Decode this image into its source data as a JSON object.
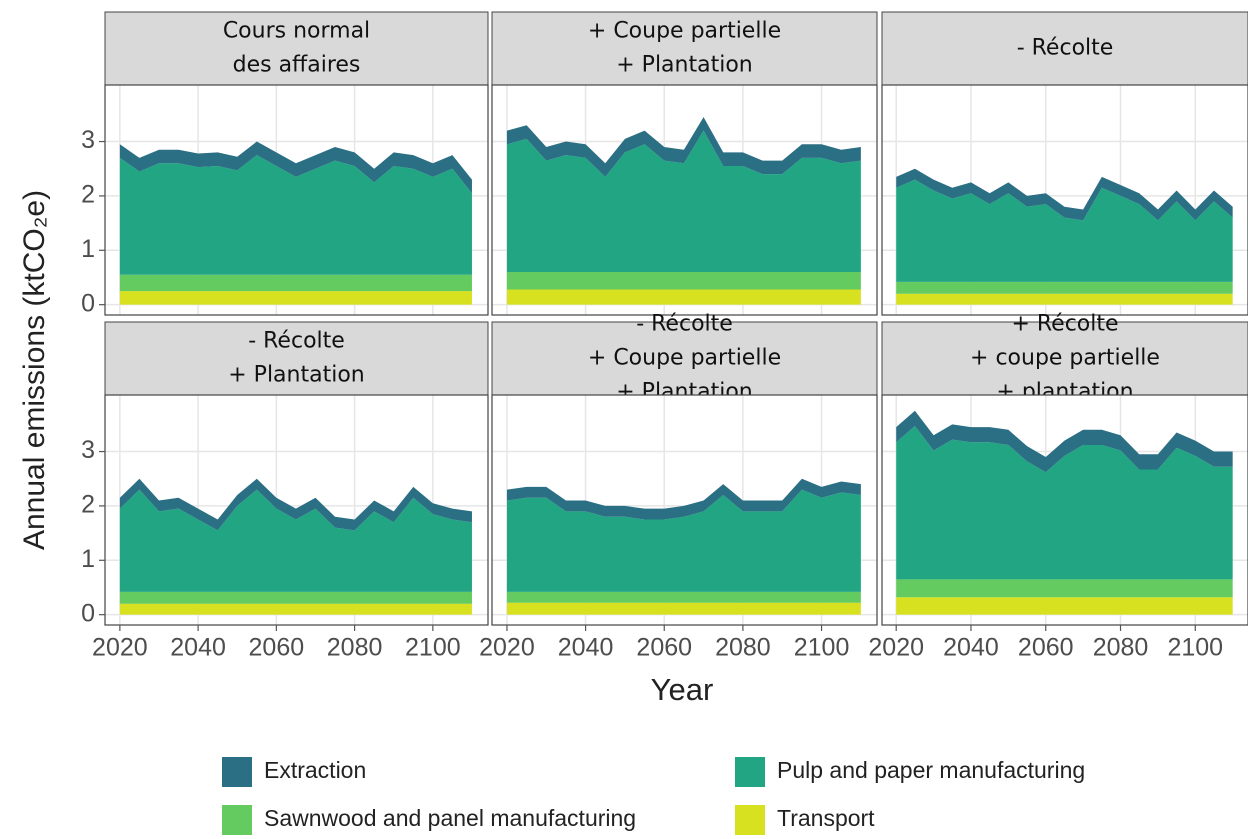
{
  "x_label": "Year",
  "y_label": "Annual emissions (ktCO₂e)",
  "chart_data": [
    {
      "type": "area",
      "stacked": true,
      "title": [
        "Cours normal",
        "des affaires"
      ],
      "x": [
        2020,
        2025,
        2030,
        2035,
        2040,
        2045,
        2050,
        2055,
        2060,
        2065,
        2070,
        2075,
        2080,
        2085,
        2090,
        2095,
        2100,
        2105,
        2110
      ],
      "series": [
        {
          "name": "Extraction",
          "color": "#2b6f84",
          "values": [
            0.25,
            0.25,
            0.25,
            0.25,
            0.25,
            0.25,
            0.25,
            0.25,
            0.25,
            0.25,
            0.25,
            0.25,
            0.25,
            0.25,
            0.25,
            0.25,
            0.25,
            0.25,
            0.25
          ]
        },
        {
          "name": "Pulp and paper manufacturing",
          "color": "#21a583",
          "values": [
            2.15,
            1.9,
            2.05,
            2.05,
            1.98,
            2.0,
            1.92,
            2.2,
            2.0,
            1.8,
            1.95,
            2.1,
            2.0,
            1.7,
            2.0,
            1.95,
            1.8,
            1.95,
            1.5
          ]
        },
        {
          "name": "Sawnwood and panel manufacturing",
          "color": "#63cb5f",
          "values": [
            0.3,
            0.3,
            0.3,
            0.3,
            0.3,
            0.3,
            0.3,
            0.3,
            0.3,
            0.3,
            0.3,
            0.3,
            0.3,
            0.3,
            0.3,
            0.3,
            0.3,
            0.3,
            0.3
          ]
        },
        {
          "name": "Transport",
          "color": "#d8e11f",
          "values": [
            0.25,
            0.25,
            0.25,
            0.25,
            0.25,
            0.25,
            0.25,
            0.25,
            0.25,
            0.25,
            0.25,
            0.25,
            0.25,
            0.25,
            0.25,
            0.25,
            0.25,
            0.25,
            0.25
          ]
        }
      ],
      "xlim": [
        2016.2,
        2114.1
      ],
      "xticks": [
        2020,
        2040,
        2060,
        2080,
        2100
      ],
      "ylim": [
        -0.19,
        4.04
      ],
      "yticks": [
        0,
        1,
        2,
        3
      ],
      "grid": true
    },
    {
      "type": "area",
      "stacked": true,
      "title": [
        "+ Coupe partielle",
        "+ Plantation"
      ],
      "x": [
        2020,
        2025,
        2030,
        2035,
        2040,
        2045,
        2050,
        2055,
        2060,
        2065,
        2070,
        2075,
        2080,
        2085,
        2090,
        2095,
        2100,
        2105,
        2110
      ],
      "series": [
        {
          "name": "Extraction",
          "color": "#2b6f84",
          "values": [
            0.25,
            0.25,
            0.25,
            0.25,
            0.25,
            0.25,
            0.25,
            0.25,
            0.25,
            0.25,
            0.25,
            0.25,
            0.25,
            0.25,
            0.25,
            0.25,
            0.25,
            0.25,
            0.25
          ]
        },
        {
          "name": "Pulp and paper manufacturing",
          "color": "#21a583",
          "values": [
            2.35,
            2.45,
            2.05,
            2.15,
            2.1,
            1.75,
            2.2,
            2.35,
            2.05,
            2.0,
            2.6,
            1.95,
            1.95,
            1.8,
            1.8,
            2.1,
            2.1,
            2.0,
            2.05
          ]
        },
        {
          "name": "Sawnwood and panel manufacturing",
          "color": "#63cb5f",
          "values": [
            0.32,
            0.32,
            0.32,
            0.32,
            0.32,
            0.32,
            0.32,
            0.32,
            0.32,
            0.32,
            0.32,
            0.32,
            0.32,
            0.32,
            0.32,
            0.32,
            0.32,
            0.32,
            0.32
          ]
        },
        {
          "name": "Transport",
          "color": "#d8e11f",
          "values": [
            0.28,
            0.28,
            0.28,
            0.28,
            0.28,
            0.28,
            0.28,
            0.28,
            0.28,
            0.28,
            0.28,
            0.28,
            0.28,
            0.28,
            0.28,
            0.28,
            0.28,
            0.28,
            0.28
          ]
        }
      ],
      "xlim": [
        2016.2,
        2114.1
      ],
      "xticks": [
        2020,
        2040,
        2060,
        2080,
        2100
      ],
      "ylim": [
        -0.19,
        4.04
      ],
      "yticks": [
        0,
        1,
        2,
        3
      ],
      "grid": true
    },
    {
      "type": "area",
      "stacked": true,
      "title": [
        "- Récolte"
      ],
      "x": [
        2020,
        2025,
        2030,
        2035,
        2040,
        2045,
        2050,
        2055,
        2060,
        2065,
        2070,
        2075,
        2080,
        2085,
        2090,
        2095,
        2100,
        2105,
        2110
      ],
      "series": [
        {
          "name": "Extraction",
          "color": "#2b6f84",
          "values": [
            0.2,
            0.2,
            0.2,
            0.2,
            0.2,
            0.2,
            0.2,
            0.2,
            0.2,
            0.2,
            0.2,
            0.2,
            0.2,
            0.2,
            0.2,
            0.2,
            0.2,
            0.2,
            0.2
          ]
        },
        {
          "name": "Pulp and paper manufacturing",
          "color": "#21a583",
          "values": [
            1.73,
            1.88,
            1.68,
            1.53,
            1.63,
            1.43,
            1.63,
            1.38,
            1.43,
            1.18,
            1.13,
            1.73,
            1.58,
            1.43,
            1.13,
            1.48,
            1.13,
            1.48,
            1.18
          ]
        },
        {
          "name": "Sawnwood and panel manufacturing",
          "color": "#63cb5f",
          "values": [
            0.22,
            0.22,
            0.22,
            0.22,
            0.22,
            0.22,
            0.22,
            0.22,
            0.22,
            0.22,
            0.22,
            0.22,
            0.22,
            0.22,
            0.22,
            0.22,
            0.22,
            0.22,
            0.22
          ]
        },
        {
          "name": "Transport",
          "color": "#d8e11f",
          "values": [
            0.2,
            0.2,
            0.2,
            0.2,
            0.2,
            0.2,
            0.2,
            0.2,
            0.2,
            0.2,
            0.2,
            0.2,
            0.2,
            0.2,
            0.2,
            0.2,
            0.2,
            0.2,
            0.2
          ]
        }
      ],
      "xlim": [
        2016.2,
        2114.1
      ],
      "xticks": [
        2020,
        2040,
        2060,
        2080,
        2100
      ],
      "ylim": [
        -0.19,
        4.04
      ],
      "yticks": [
        0,
        1,
        2,
        3
      ],
      "grid": true
    },
    {
      "type": "area",
      "stacked": true,
      "title": [
        "-   Récolte",
        "+ Plantation"
      ],
      "x": [
        2020,
        2025,
        2030,
        2035,
        2040,
        2045,
        2050,
        2055,
        2060,
        2065,
        2070,
        2075,
        2080,
        2085,
        2090,
        2095,
        2100,
        2105,
        2110
      ],
      "series": [
        {
          "name": "Extraction",
          "color": "#2b6f84",
          "values": [
            0.2,
            0.2,
            0.2,
            0.2,
            0.2,
            0.2,
            0.2,
            0.2,
            0.2,
            0.2,
            0.2,
            0.2,
            0.2,
            0.2,
            0.2,
            0.2,
            0.2,
            0.2,
            0.2
          ]
        },
        {
          "name": "Pulp and paper manufacturing",
          "color": "#21a583",
          "values": [
            1.53,
            1.88,
            1.48,
            1.53,
            1.33,
            1.13,
            1.58,
            1.88,
            1.53,
            1.33,
            1.53,
            1.18,
            1.13,
            1.48,
            1.28,
            1.73,
            1.43,
            1.33,
            1.28
          ]
        },
        {
          "name": "Sawnwood and panel manufacturing",
          "color": "#63cb5f",
          "values": [
            0.22,
            0.22,
            0.22,
            0.22,
            0.22,
            0.22,
            0.22,
            0.22,
            0.22,
            0.22,
            0.22,
            0.22,
            0.22,
            0.22,
            0.22,
            0.22,
            0.22,
            0.22,
            0.22
          ]
        },
        {
          "name": "Transport",
          "color": "#d8e11f",
          "values": [
            0.2,
            0.2,
            0.2,
            0.2,
            0.2,
            0.2,
            0.2,
            0.2,
            0.2,
            0.2,
            0.2,
            0.2,
            0.2,
            0.2,
            0.2,
            0.2,
            0.2,
            0.2,
            0.2
          ]
        }
      ],
      "xlim": [
        2016.2,
        2114.1
      ],
      "xticks": [
        2020,
        2040,
        2060,
        2080,
        2100
      ],
      "ylim": [
        -0.19,
        4.04
      ],
      "yticks": [
        0,
        1,
        2,
        3
      ],
      "grid": true
    },
    {
      "type": "area",
      "stacked": true,
      "title": [
        "- Récolte",
        "+ Coupe partielle",
        "+ Plantation"
      ],
      "x": [
        2020,
        2025,
        2030,
        2035,
        2040,
        2045,
        2050,
        2055,
        2060,
        2065,
        2070,
        2075,
        2080,
        2085,
        2090,
        2095,
        2100,
        2105,
        2110
      ],
      "series": [
        {
          "name": "Extraction",
          "color": "#2b6f84",
          "values": [
            0.2,
            0.2,
            0.2,
            0.2,
            0.2,
            0.2,
            0.2,
            0.2,
            0.2,
            0.2,
            0.2,
            0.2,
            0.2,
            0.2,
            0.2,
            0.2,
            0.2,
            0.2,
            0.2
          ]
        },
        {
          "name": "Pulp and paper manufacturing",
          "color": "#21a583",
          "values": [
            1.68,
            1.73,
            1.73,
            1.48,
            1.48,
            1.38,
            1.38,
            1.33,
            1.33,
            1.38,
            1.48,
            1.78,
            1.48,
            1.48,
            1.48,
            1.88,
            1.73,
            1.83,
            1.78
          ]
        },
        {
          "name": "Sawnwood and panel manufacturing",
          "color": "#63cb5f",
          "values": [
            0.2,
            0.2,
            0.2,
            0.2,
            0.2,
            0.2,
            0.2,
            0.2,
            0.2,
            0.2,
            0.2,
            0.2,
            0.2,
            0.2,
            0.2,
            0.2,
            0.2,
            0.2,
            0.2
          ]
        },
        {
          "name": "Transport",
          "color": "#d8e11f",
          "values": [
            0.22,
            0.22,
            0.22,
            0.22,
            0.22,
            0.22,
            0.22,
            0.22,
            0.22,
            0.22,
            0.22,
            0.22,
            0.22,
            0.22,
            0.22,
            0.22,
            0.22,
            0.22,
            0.22
          ]
        }
      ],
      "xlim": [
        2016.2,
        2114.1
      ],
      "xticks": [
        2020,
        2040,
        2060,
        2080,
        2100
      ],
      "ylim": [
        -0.19,
        4.04
      ],
      "yticks": [
        0,
        1,
        2,
        3
      ],
      "grid": true
    },
    {
      "type": "area",
      "stacked": true,
      "title": [
        "+ Récolte",
        "+ coupe partielle",
        "+ plantation"
      ],
      "x": [
        2020,
        2025,
        2030,
        2035,
        2040,
        2045,
        2050,
        2055,
        2060,
        2065,
        2070,
        2075,
        2080,
        2085,
        2090,
        2095,
        2100,
        2105,
        2110
      ],
      "series": [
        {
          "name": "Extraction",
          "color": "#2b6f84",
          "values": [
            0.28,
            0.28,
            0.28,
            0.28,
            0.28,
            0.28,
            0.28,
            0.28,
            0.28,
            0.28,
            0.28,
            0.28,
            0.28,
            0.28,
            0.28,
            0.28,
            0.28,
            0.28,
            0.28
          ]
        },
        {
          "name": "Pulp and paper manufacturing",
          "color": "#21a583",
          "values": [
            2.52,
            2.82,
            2.37,
            2.57,
            2.52,
            2.52,
            2.47,
            2.17,
            1.97,
            2.27,
            2.47,
            2.47,
            2.37,
            2.02,
            2.02,
            2.42,
            2.27,
            2.07,
            2.07
          ]
        },
        {
          "name": "Sawnwood and panel manufacturing",
          "color": "#63cb5f",
          "values": [
            0.33,
            0.33,
            0.33,
            0.33,
            0.33,
            0.33,
            0.33,
            0.33,
            0.33,
            0.33,
            0.33,
            0.33,
            0.33,
            0.33,
            0.33,
            0.33,
            0.33,
            0.33,
            0.33
          ]
        },
        {
          "name": "Transport",
          "color": "#d8e11f",
          "values": [
            0.32,
            0.32,
            0.32,
            0.32,
            0.32,
            0.32,
            0.32,
            0.32,
            0.32,
            0.32,
            0.32,
            0.32,
            0.32,
            0.32,
            0.32,
            0.32,
            0.32,
            0.32,
            0.32
          ]
        }
      ],
      "xlim": [
        2016.2,
        2114.1
      ],
      "xticks": [
        2020,
        2040,
        2060,
        2080,
        2100
      ],
      "ylim": [
        -0.19,
        4.04
      ],
      "yticks": [
        0,
        1,
        2,
        3
      ],
      "grid": true
    }
  ]
}
